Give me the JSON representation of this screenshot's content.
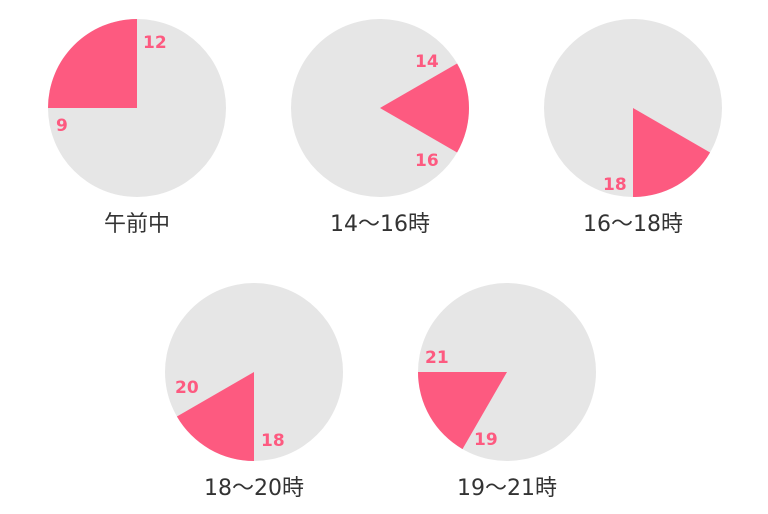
{
  "colors": {
    "dial": "#e6e6e6",
    "slot": "#fd5a80",
    "label": "#fd5a80",
    "caption": "#333333"
  },
  "clocks": [
    {
      "caption": "午前中",
      "start": "9",
      "end": "12",
      "start_hour": 9,
      "end_hour": 12
    },
    {
      "caption": "14〜16時",
      "start": "14",
      "end": "16",
      "start_hour": 14,
      "end_hour": 16
    },
    {
      "caption": "16〜18時",
      "start": "16",
      "end": "18",
      "start_hour": 16,
      "end_hour": 18
    },
    {
      "caption": "18〜20時",
      "start": "18",
      "end": "20",
      "start_hour": 18,
      "end_hour": 20
    },
    {
      "caption": "19〜21時",
      "start": "19",
      "end": "21",
      "start_hour": 19,
      "end_hour": 21
    }
  ]
}
